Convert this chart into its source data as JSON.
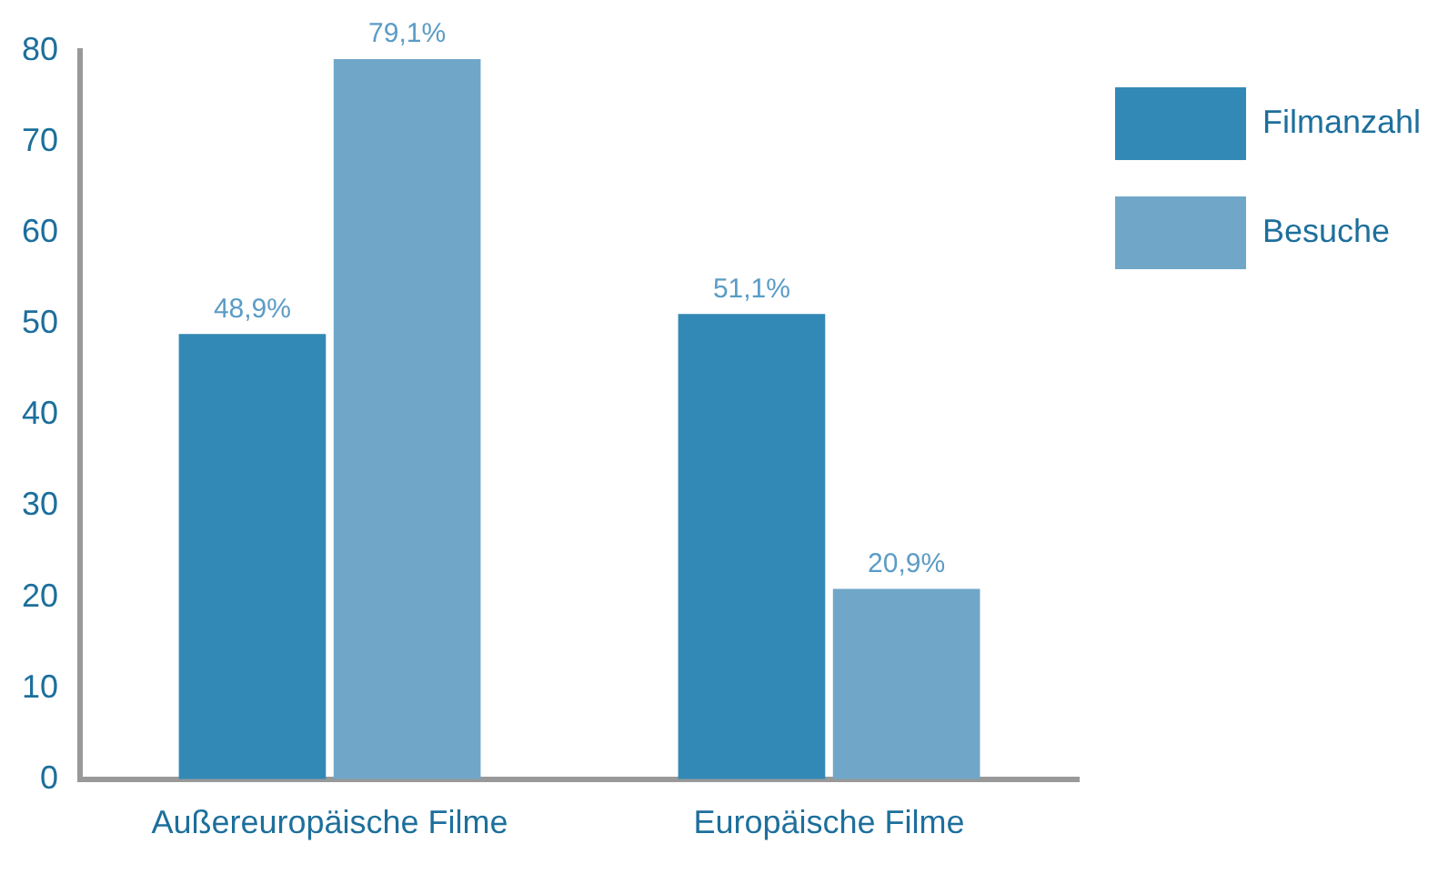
{
  "chart_data": {
    "type": "bar",
    "categories": [
      "Außereuropäische Filme",
      "Europäische Filme"
    ],
    "series": [
      {
        "name": "Filmanzahl",
        "color": "#3389b5",
        "values": [
          48.9,
          51.1
        ],
        "value_labels": [
          "48,9%",
          "51,1%"
        ]
      },
      {
        "name": "Besuche",
        "color": "#70a7c8",
        "values": [
          79.1,
          20.9
        ],
        "value_labels": [
          "79,1%",
          "20,9%"
        ]
      }
    ],
    "ylim": [
      0,
      80
    ],
    "yticks": [
      0,
      10,
      20,
      30,
      40,
      50,
      60,
      70,
      80
    ],
    "legend": "top right"
  }
}
